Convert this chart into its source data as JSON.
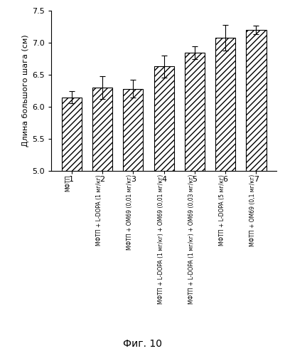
{
  "categories": [
    "1",
    "2",
    "3",
    "4",
    "5",
    "6",
    "7"
  ],
  "values": [
    6.15,
    6.3,
    6.28,
    6.63,
    6.84,
    7.08,
    7.2
  ],
  "errors": [
    0.1,
    0.18,
    0.14,
    0.17,
    0.1,
    0.2,
    0.07
  ],
  "ylim": [
    5.0,
    7.5
  ],
  "yticks": [
    5.0,
    5.5,
    6.0,
    6.5,
    7.0,
    7.5
  ],
  "ylabel": "Длина большого шага (см)",
  "xlabel_labels": [
    "МФТП",
    "МФТП + L-DOPA (1 мг/кг)",
    "МФТП + ОМ69 (0,01 мг/кг)",
    "МФТП + L-DOPA (1 мг/кг) + ОМ69 (0,01 мг/кг)",
    "МФТП + L-DOPA (1 мг/кг) + ОМ69 (0,03 мг/кг)",
    "МФТП + L-DOPA (5 мг/кг)",
    "МФТП + ОМ69 (0,1 мг/кг)"
  ],
  "caption": "Фиг. 10",
  "bar_color": "#ffffff",
  "hatch": "////",
  "edgecolor": "#000000",
  "background_color": "#ffffff",
  "figsize": [
    4.01,
    5.0
  ],
  "dpi": 100
}
